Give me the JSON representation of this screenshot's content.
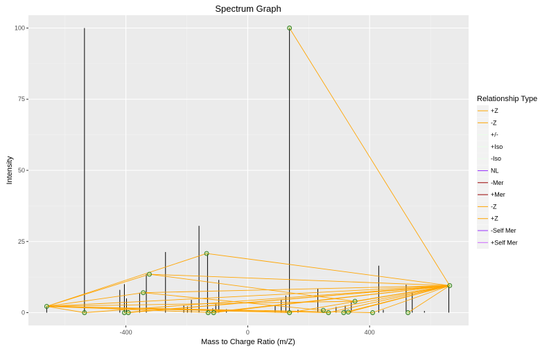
{
  "chart_data": {
    "type": "line",
    "title": "Spectrum Graph",
    "xlabel": "Mass to Charge Ratio (m/Z)",
    "ylabel": "Intensity",
    "xlim": [
      -720,
      725
    ],
    "ylim": [
      0,
      100
    ],
    "x_ticks": [
      -400,
      0,
      400
    ],
    "y_ticks": [
      0,
      25,
      50,
      75,
      100
    ],
    "x_tick_labels": [
      "-400",
      "0",
      "400"
    ],
    "y_tick_labels": [
      "0",
      "25",
      "50",
      "75",
      "100"
    ],
    "grid": true,
    "legend_position": "right",
    "legend": {
      "title": "Relationship Type",
      "entries": [
        {
          "label": "+Z",
          "color": "#ffa500"
        },
        {
          "label": "-Z",
          "color": "#ffa500"
        },
        {
          "label": "+/-",
          "color": "#e8ffe8"
        },
        {
          "label": "+Iso",
          "color": "#e8ffe8"
        },
        {
          "label": "-Iso",
          "color": "#e8ffe8"
        },
        {
          "label": "NL",
          "color": "#9933ff"
        },
        {
          "label": "-Mer",
          "color": "#990000"
        },
        {
          "label": "+Mer",
          "color": "#990000"
        },
        {
          "label": "-Z",
          "color": "#ffa500"
        },
        {
          "label": "+Z",
          "color": "#ffa500"
        },
        {
          "label": "-Self Mer",
          "color": "#9933ff"
        },
        {
          "label": "+Self Mer",
          "color": "#cc66ff"
        }
      ]
    },
    "peaks": [
      {
        "x": -660,
        "y": 2.2
      },
      {
        "x": -536,
        "y": 100
      },
      {
        "x": -420,
        "y": 8
      },
      {
        "x": -405,
        "y": 10
      },
      {
        "x": -398,
        "y": 5
      },
      {
        "x": -355,
        "y": 7
      },
      {
        "x": -333,
        "y": 13.5
      },
      {
        "x": -270,
        "y": 21.3
      },
      {
        "x": -210,
        "y": 2.5
      },
      {
        "x": -198,
        "y": 2.2
      },
      {
        "x": -185,
        "y": 4.5
      },
      {
        "x": -160,
        "y": 30.5
      },
      {
        "x": -132,
        "y": 20.8
      },
      {
        "x": -115,
        "y": 1.5
      },
      {
        "x": -105,
        "y": 3
      },
      {
        "x": -95,
        "y": 11.5
      },
      {
        "x": -70,
        "y": 1.2
      },
      {
        "x": 90,
        "y": 2.5
      },
      {
        "x": 110,
        "y": 4.5
      },
      {
        "x": 125,
        "y": 6
      },
      {
        "x": 137,
        "y": 100
      },
      {
        "x": 165,
        "y": 1
      },
      {
        "x": 230,
        "y": 8.5
      },
      {
        "x": 245,
        "y": 1
      },
      {
        "x": 290,
        "y": 2
      },
      {
        "x": 320,
        "y": 2.5
      },
      {
        "x": 340,
        "y": 4
      },
      {
        "x": 430,
        "y": 16.5
      },
      {
        "x": 445,
        "y": 1
      },
      {
        "x": 520,
        "y": 9.8
      },
      {
        "x": 540,
        "y": 7
      },
      {
        "x": 580,
        "y": 0.6
      },
      {
        "x": 660,
        "y": 9.5
      }
    ],
    "markers": [
      {
        "x": -660,
        "y": 2.2
      },
      {
        "x": -536,
        "y": 0
      },
      {
        "x": -405,
        "y": 0
      },
      {
        "x": -392,
        "y": 0
      },
      {
        "x": -343,
        "y": 7
      },
      {
        "x": -323,
        "y": 13.5
      },
      {
        "x": -135,
        "y": 20.8
      },
      {
        "x": -130,
        "y": 0
      },
      {
        "x": -112,
        "y": 0
      },
      {
        "x": 137,
        "y": 100
      },
      {
        "x": 137,
        "y": 0
      },
      {
        "x": 248,
        "y": 0.8
      },
      {
        "x": 265,
        "y": 0
      },
      {
        "x": 315,
        "y": 0
      },
      {
        "x": 330,
        "y": 0.2
      },
      {
        "x": 352,
        "y": 4
      },
      {
        "x": 410,
        "y": 0
      },
      {
        "x": 526,
        "y": 0
      },
      {
        "x": 663,
        "y": 9.5
      }
    ],
    "edges": [
      {
        "x1": 137,
        "y1": 100,
        "x2": 663,
        "y2": 9.5
      },
      {
        "x1": -135,
        "y1": 20.8,
        "x2": 663,
        "y2": 9.5
      },
      {
        "x1": -323,
        "y1": 13.5,
        "x2": 663,
        "y2": 9.5
      },
      {
        "x1": -343,
        "y1": 7,
        "x2": 663,
        "y2": 9.5
      },
      {
        "x1": -660,
        "y1": 2.2,
        "x2": 663,
        "y2": 9.5
      },
      {
        "x1": -660,
        "y1": 2.2,
        "x2": -135,
        "y2": 20.8
      },
      {
        "x1": -660,
        "y1": 2.2,
        "x2": -323,
        "y2": 13.5
      },
      {
        "x1": -660,
        "y1": 2.2,
        "x2": -343,
        "y2": 7
      },
      {
        "x1": -660,
        "y1": 2.2,
        "x2": -536,
        "y2": 0
      },
      {
        "x1": -660,
        "y1": 2.2,
        "x2": -112,
        "y2": 0
      },
      {
        "x1": -660,
        "y1": 2.2,
        "x2": 137,
        "y2": 0
      },
      {
        "x1": -660,
        "y1": 2.2,
        "x2": 265,
        "y2": 0
      },
      {
        "x1": -660,
        "y1": 2.2,
        "x2": 352,
        "y2": 4
      },
      {
        "x1": -660,
        "y1": 2.2,
        "x2": 410,
        "y2": 0
      },
      {
        "x1": -405,
        "y1": 0,
        "x2": 663,
        "y2": 9.5
      },
      {
        "x1": -392,
        "y1": 0,
        "x2": 663,
        "y2": 9.5
      },
      {
        "x1": -130,
        "y1": 0,
        "x2": 663,
        "y2": 9.5
      },
      {
        "x1": -112,
        "y1": 0,
        "x2": 663,
        "y2": 9.5
      },
      {
        "x1": 137,
        "y1": 0,
        "x2": 663,
        "y2": 9.5
      },
      {
        "x1": 248,
        "y1": 0.8,
        "x2": 663,
        "y2": 9.5
      },
      {
        "x1": 265,
        "y1": 0,
        "x2": 663,
        "y2": 9.5
      },
      {
        "x1": 315,
        "y1": 0,
        "x2": 663,
        "y2": 9.5
      },
      {
        "x1": 330,
        "y1": 0.2,
        "x2": 663,
        "y2": 9.5
      },
      {
        "x1": 352,
        "y1": 4,
        "x2": 663,
        "y2": 9.5
      },
      {
        "x1": 410,
        "y1": 0,
        "x2": 663,
        "y2": 9.5
      },
      {
        "x1": 526,
        "y1": 0,
        "x2": 663,
        "y2": 9.5
      },
      {
        "x1": -536,
        "y1": 0,
        "x2": 663,
        "y2": 9.5
      },
      {
        "x1": -343,
        "y1": 7,
        "x2": 248,
        "y2": 0.8
      },
      {
        "x1": -323,
        "y1": 13.5,
        "x2": 352,
        "y2": 4
      }
    ]
  }
}
